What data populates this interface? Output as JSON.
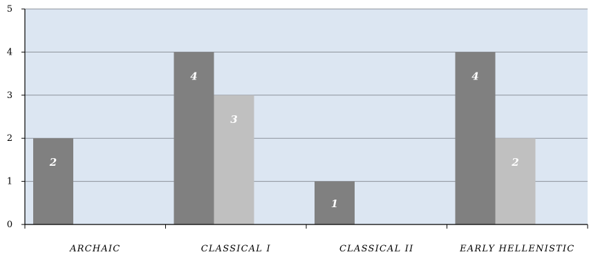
{
  "chart_data": {
    "type": "bar",
    "title": "",
    "xlabel": "",
    "ylabel": "",
    "categories": [
      "ARCHAIC",
      "CLASSICAL I",
      "CLASSICAL II",
      "EARLY HELLENISTIC"
    ],
    "series": [
      {
        "values": [
          2,
          4,
          1,
          4
        ],
        "data_labels": [
          "2",
          "4",
          "1",
          "4"
        ],
        "color": "#808080"
      },
      {
        "values": [
          null,
          3,
          null,
          2
        ],
        "data_labels": [
          "",
          "3",
          "",
          "2"
        ],
        "color": "#c0c0c0"
      }
    ],
    "ylim": [
      0,
      5
    ],
    "yticks": [
      "0",
      "1",
      "2",
      "3",
      "4",
      "5"
    ],
    "grid": true,
    "legend": "none",
    "plot_background": "#dce6f2",
    "gridline_color": "#8a9099"
  }
}
